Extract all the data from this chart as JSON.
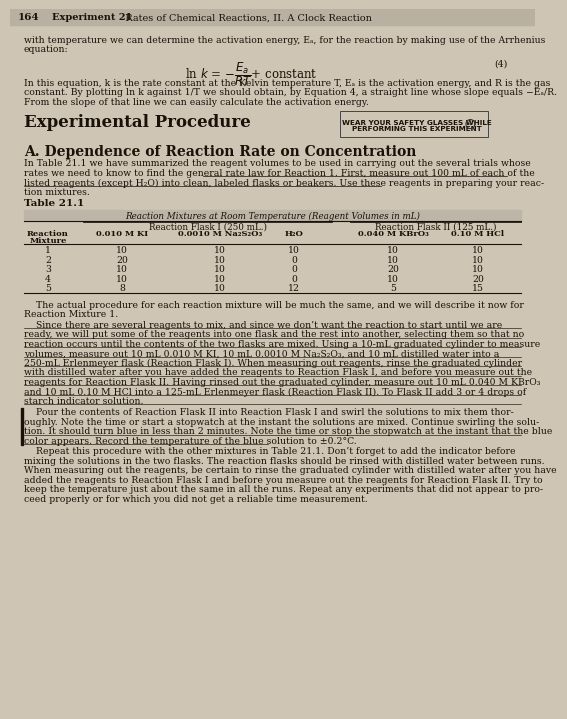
{
  "page_number": "164",
  "chapter_header_bold": "Experiment 21",
  "chapter_header_normal": "  Rates of Chemical Reactions, II. A Clock Reaction",
  "bg_color": "#cec5b5",
  "text_color": "#1a1108",
  "header_bg": "#b8b0a0",
  "intro_line1": "with temperature we can determine the activation energy, Eₐ, for the reaction by making use of the Arrhenius",
  "intro_line2": "equation:",
  "eq_number": "(4)",
  "expl_line1": "In this equation, k is the rate constant at the Kelvin temperature T, Eₐ is the activation energy, and R is the gas",
  "expl_line2": "constant. By plotting ln k against 1/T we should obtain, by Equation 4, a straight line whose slope equals −Eₐ/R.",
  "expl_line3": "From the slope of that line we can easily calculate the activation energy.",
  "safety_line1": "WEAR YOUR SAFETY GLASSES WHILE",
  "safety_line2": "PERFORMING THIS EXPERIMENT",
  "section1_title": "Experimental Procedure",
  "section2_title": "A. Dependence of Reaction Rate on Concentration",
  "p1_l1": "In Table 21.1 we have summarized the reagent volumes to be used in carrying out the several trials whose",
  "p1_l2": "rates we need to know to find the general rate law for Reaction 1. First, measure out 100 mL of each of the",
  "p1_l3": "listed reagents (except H₂O) into clean, labeled flasks or beakers. Use these reagents in preparing your reac-",
  "p1_l4": "tion mixtures.",
  "table_title": "Table 21.1",
  "table_subtitle": "Reaction Mixtures at Room Temperature (Reagent Volumes in mL)",
  "col_group1": "Reaction Flask I (250 mL.)",
  "col_group2": "Reaction Flask II (125 mL.)",
  "col_h0a": "Reaction",
  "col_h0b": "Mixture",
  "col_h1": "0.010 M KI",
  "col_h2": "0.0010 M Na₂S₂O₃",
  "col_h3": "H₂O",
  "col_h4": "0.040 M KBrO₃",
  "col_h5": "0.10 M HCl",
  "table_data": [
    [
      1,
      10,
      10,
      10,
      10,
      10
    ],
    [
      2,
      20,
      10,
      0,
      10,
      10
    ],
    [
      3,
      10,
      10,
      0,
      20,
      10
    ],
    [
      4,
      10,
      10,
      0,
      10,
      20
    ],
    [
      5,
      8,
      10,
      12,
      5,
      15
    ]
  ],
  "p2_l1": "    The actual procedure for each reaction mixture will be much the same, and we will describe it now for",
  "p2_l2": "Reaction Mixture 1.",
  "p3_l1": "    Since there are several reagents to mix, and since we don’t want the reaction to start until we are",
  "p3_l2": "ready, we will put some of the reagents into one flask and the rest into another, selecting them so that no",
  "p3_l3": "reaction occurs until the contents of the two flasks are mixed. Using a 10-mL graduated cylinder to measure",
  "p3_l4": "volumes, measure out 10 mL 0.010 M KI, 10 mL 0.0010 M Na₂S₂O₃, and 10 mL distilled water into a",
  "p3_l5": "250-mL Erlenmeyer flask (Reaction Flask I). When measuring out reagents, rinse the graduated cylinder",
  "p3_l6": "with distilled water after you have added the reagents to Reaction Flask I, and before you measure out the",
  "p3_l7": "reagents for Reaction Flask II. Having rinsed out the graduated cylinder, measure out 10 mL 0.040 M KBrO₃",
  "p3_l8": "and 10 mL 0.10 M HCl into a 125-mL Erlenmeyer flask (Reaction Flask II). To Flask II add 3 or 4 drops of",
  "p3_l9": "starch indicator solution.",
  "p4_l1": "    Pour the contents of Reaction Flask II into Reaction Flask I and swirl the solutions to mix them thor-",
  "p4_l2": "oughly. Note the time or start a stopwatch at the instant the solutions are mixed. Continue swirling the solu-",
  "p4_l3": "tion. It should turn blue in less than 2 minutes. Note the time or stop the stopwatch at the instant that the blue",
  "p4_l4": "color appears. Record the temperature of the blue solution to ±0.2°C.",
  "p5_l1": "    Repeat this procedure with the other mixtures in Table 21.1. Don’t forget to add the indicator before",
  "p5_l2": "mixing the solutions in the two flasks. The reaction flasks should be rinsed with distilled water between runs.",
  "p5_l3": "When measuring out the reagents, be certain to rinse the graduated cylinder with distilled water after you have",
  "p5_l4": "added the reagents to Reaction Flask I and before you measure out the reagents for Reaction Flask II. Try to",
  "p5_l5": "keep the temperature just about the same in all the runs. Repeat any experiments that did not appear to pro-",
  "p5_l6": "ceed properly or for which you did not get a reliable time measurement."
}
